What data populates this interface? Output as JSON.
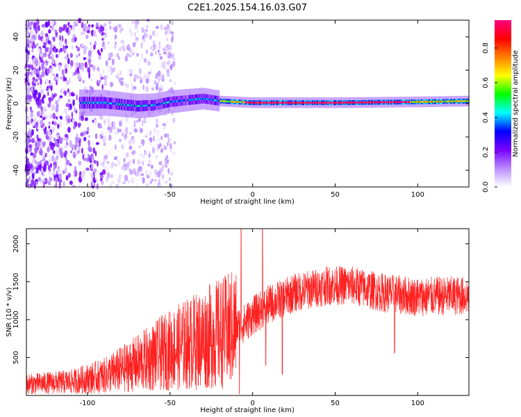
{
  "title": "C2E1.2025.154.16.03.G07",
  "colors": {
    "snr_line": "#ff2020",
    "colormap": [
      "#ffffff",
      "#b98cff",
      "#7a00ff",
      "#0000ff",
      "#00ffff",
      "#00ff00",
      "#ffff00",
      "#ff7f00",
      "#ff0000",
      "#ff0080"
    ]
  },
  "chart_data": [
    {
      "type": "heatmap",
      "xlabel": "Height of straight line (km)",
      "ylabel": "Frequency (Hz)",
      "xlim": [
        -137,
        131
      ],
      "ylim": [
        -50,
        50
      ],
      "xticks": [
        -100,
        -50,
        0,
        50,
        100
      ],
      "xtick_labels": [
        "-100",
        "-50",
        "0",
        "50",
        "100"
      ],
      "yticks": [
        -40,
        -20,
        0,
        20,
        40
      ],
      "ytick_labels": [
        "-40",
        "-20",
        "0",
        "20",
        "40"
      ],
      "colorbar": {
        "label": "Normalized spectral amplitude",
        "range": [
          0,
          0.96
        ],
        "ticks": [
          0.0,
          0.2,
          0.4,
          0.6,
          0.8
        ],
        "tick_labels": [
          "0.0",
          "0.2",
          "0.4",
          "0.6",
          "0.8"
        ]
      },
      "ridge": [
        {
          "x": -105,
          "f": 0.5
        },
        {
          "x": -90,
          "f": 0.5
        },
        {
          "x": -80,
          "f": -0.5
        },
        {
          "x": -70,
          "f": -1.5
        },
        {
          "x": -60,
          "f": -1
        },
        {
          "x": -50,
          "f": 1
        },
        {
          "x": -40,
          "f": 2
        },
        {
          "x": -30,
          "f": 3
        },
        {
          "x": -20,
          "f": 1.5
        },
        {
          "x": -10,
          "f": 1
        },
        {
          "x": 0,
          "f": 0.5
        },
        {
          "x": 50,
          "f": 0.5
        },
        {
          "x": 100,
          "f": 1
        },
        {
          "x": 131,
          "f": 1.5
        }
      ]
    },
    {
      "type": "line",
      "xlabel": "Height of straight line (km)",
      "ylabel": "SNR (10 * v/v)",
      "xlim": [
        -137,
        131
      ],
      "ylim": [
        0,
        2200
      ],
      "xticks": [
        -100,
        -50,
        0,
        50,
        100
      ],
      "xtick_labels": [
        "-100",
        "-50",
        "0",
        "50",
        "100"
      ],
      "yticks": [
        500,
        1000,
        1500,
        2000
      ],
      "ytick_labels": [
        "500",
        "1000",
        "1500",
        "2000"
      ],
      "series": [
        {
          "trend": [
            {
              "x": -137,
              "y": 150
            },
            {
              "x": -110,
              "y": 180
            },
            {
              "x": -90,
              "y": 260
            },
            {
              "x": -70,
              "y": 420
            },
            {
              "x": -50,
              "y": 600
            },
            {
              "x": -30,
              "y": 750
            },
            {
              "x": -15,
              "y": 850
            },
            {
              "x": -5,
              "y": 950
            },
            {
              "x": 0,
              "y": 1050
            },
            {
              "x": 10,
              "y": 1200
            },
            {
              "x": 25,
              "y": 1350
            },
            {
              "x": 45,
              "y": 1450
            },
            {
              "x": 60,
              "y": 1450
            },
            {
              "x": 80,
              "y": 1350
            },
            {
              "x": 100,
              "y": 1300
            },
            {
              "x": 131,
              "y": 1320
            }
          ],
          "spikes": [
            {
              "x": -7,
              "y": 2200
            },
            {
              "x": 6,
              "y": 2200
            },
            {
              "x": -8,
              "y": 20
            },
            {
              "x": 8,
              "y": 400
            },
            {
              "x": 18,
              "y": 280
            },
            {
              "x": 86,
              "y": 560
            }
          ]
        }
      ]
    }
  ]
}
